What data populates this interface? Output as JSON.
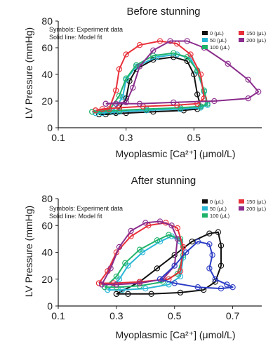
{
  "chart_data": [
    {
      "type": "line",
      "title": "Before stunning",
      "xlabel": "Myoplasmic [Ca²⁺] (μmol/L)",
      "ylabel": "LV Pressure (mmHg)",
      "xlim": [
        0.1,
        0.7
      ],
      "ylim": [
        0,
        80
      ],
      "x_ticks": [
        "0.1",
        "0.3",
        "0.5"
      ],
      "y_ticks": [
        "0",
        "20",
        "40",
        "60",
        "80"
      ],
      "annotations": [
        "Symbols: Experiment data",
        "Solid line: Model fit"
      ],
      "legend_position": "top-right",
      "series": [
        {
          "name": "0 (μL)",
          "color": "#111111",
          "x": [
            0.22,
            0.27,
            0.3,
            0.31,
            0.33,
            0.38,
            0.44,
            0.48,
            0.5,
            0.51,
            0.52,
            0.51,
            0.47,
            0.38,
            0.3,
            0.24,
            0.22
          ],
          "y": [
            10,
            11,
            22,
            35,
            44,
            51,
            53,
            50,
            40,
            25,
            16,
            14,
            13,
            12,
            11,
            10,
            10
          ]
        },
        {
          "name": "50 (μL)",
          "color": "#2ab7d6",
          "x": [
            0.21,
            0.26,
            0.29,
            0.3,
            0.33,
            0.39,
            0.45,
            0.49,
            0.51,
            0.53,
            0.54,
            0.52,
            0.46,
            0.36,
            0.28,
            0.23,
            0.21
          ],
          "y": [
            11,
            12,
            23,
            36,
            46,
            53,
            55,
            52,
            42,
            27,
            17,
            15,
            14,
            13,
            12,
            11,
            11
          ]
        },
        {
          "name": "100 (μL)",
          "color": "#1fb36a",
          "x": [
            0.2,
            0.25,
            0.28,
            0.3,
            0.33,
            0.38,
            0.44,
            0.48,
            0.51,
            0.53,
            0.54,
            0.52,
            0.46,
            0.36,
            0.28,
            0.22,
            0.2
          ],
          "y": [
            12,
            13,
            24,
            37,
            47,
            54,
            56,
            53,
            43,
            28,
            18,
            16,
            15,
            14,
            13,
            12,
            12
          ]
        },
        {
          "name": "150 (μL)",
          "color": "#e8303a",
          "x": [
            0.21,
            0.25,
            0.27,
            0.28,
            0.3,
            0.34,
            0.4,
            0.45,
            0.49,
            0.52,
            0.53,
            0.51,
            0.45,
            0.35,
            0.28,
            0.23,
            0.21
          ],
          "y": [
            13,
            14,
            28,
            44,
            55,
            62,
            65,
            63,
            55,
            40,
            22,
            18,
            17,
            16,
            15,
            14,
            13
          ]
        },
        {
          "name": "200 (μL)",
          "color": "#8a2c8c",
          "x": [
            0.24,
            0.3,
            0.32,
            0.34,
            0.38,
            0.43,
            0.48,
            0.53,
            0.6,
            0.66,
            0.69,
            0.66,
            0.56,
            0.44,
            0.34,
            0.27,
            0.24
          ],
          "y": [
            18,
            19,
            30,
            46,
            58,
            65,
            65,
            60,
            48,
            36,
            27,
            22,
            20,
            19,
            18,
            18,
            18
          ]
        }
      ]
    },
    {
      "type": "line",
      "title": "After stunning",
      "xlabel": "Myoplasmic [Ca²⁺] (μmol/L)",
      "ylabel": "LV Pressure (mmHg)",
      "xlim": [
        0.1,
        0.8
      ],
      "ylim": [
        0,
        80
      ],
      "x_ticks": [
        "0.1",
        "0.3",
        "0.5",
        "0.7"
      ],
      "y_ticks": [
        "0",
        "20",
        "40",
        "60",
        "80"
      ],
      "annotations": [
        "Symbols: Experiment data",
        "Solid line: Model fit"
      ],
      "legend_position": "top-right",
      "series": [
        {
          "name": "0 (μL)",
          "color": "#111111",
          "x": [
            0.3,
            0.38,
            0.44,
            0.5,
            0.56,
            0.62,
            0.65,
            0.66,
            0.66,
            0.64,
            0.6,
            0.52,
            0.42,
            0.34,
            0.3
          ],
          "y": [
            9,
            18,
            28,
            38,
            48,
            54,
            55,
            45,
            30,
            18,
            12,
            10,
            9,
            9,
            9
          ]
        },
        {
          "name": "50 (μL)",
          "color": "#2ab7d6",
          "x": [
            0.27,
            0.31,
            0.34,
            0.39,
            0.45,
            0.49,
            0.52,
            0.53,
            0.52,
            0.48,
            0.4,
            0.32,
            0.27
          ],
          "y": [
            12,
            20,
            30,
            40,
            48,
            52,
            48,
            36,
            22,
            16,
            13,
            12,
            12
          ]
        },
        {
          "name": "100 (μL)",
          "color": "#1fb36a",
          "x": [
            0.26,
            0.3,
            0.33,
            0.38,
            0.44,
            0.48,
            0.52,
            0.53,
            0.51,
            0.46,
            0.38,
            0.3,
            0.26
          ],
          "y": [
            14,
            22,
            32,
            42,
            49,
            53,
            50,
            38,
            24,
            18,
            15,
            14,
            14
          ]
        },
        {
          "name": "150 (μL)",
          "color": "#e8303a",
          "x": [
            0.24,
            0.27,
            0.3,
            0.35,
            0.41,
            0.47,
            0.51,
            0.53,
            0.52,
            0.48,
            0.38,
            0.29,
            0.24
          ],
          "y": [
            17,
            26,
            40,
            52,
            60,
            62,
            58,
            44,
            26,
            20,
            18,
            17,
            17
          ]
        },
        {
          "name": "200 (μL)",
          "color": "#8a2c8c",
          "x": [
            0.25,
            0.28,
            0.31,
            0.35,
            0.4,
            0.45,
            0.49,
            0.51,
            0.5,
            0.46,
            0.38,
            0.3,
            0.25
          ],
          "y": [
            16,
            28,
            44,
            56,
            62,
            63,
            60,
            50,
            30,
            20,
            17,
            16,
            16
          ]
        },
        {
          "name": "",
          "color": "#2b3cc4",
          "x": [
            0.45,
            0.5,
            0.54,
            0.58,
            0.62,
            0.63,
            0.62,
            0.64,
            0.68,
            0.7,
            0.66,
            0.58,
            0.5,
            0.45
          ],
          "y": [
            20,
            30,
            40,
            48,
            46,
            38,
            28,
            20,
            16,
            14,
            13,
            14,
            17,
            20
          ]
        }
      ]
    }
  ]
}
